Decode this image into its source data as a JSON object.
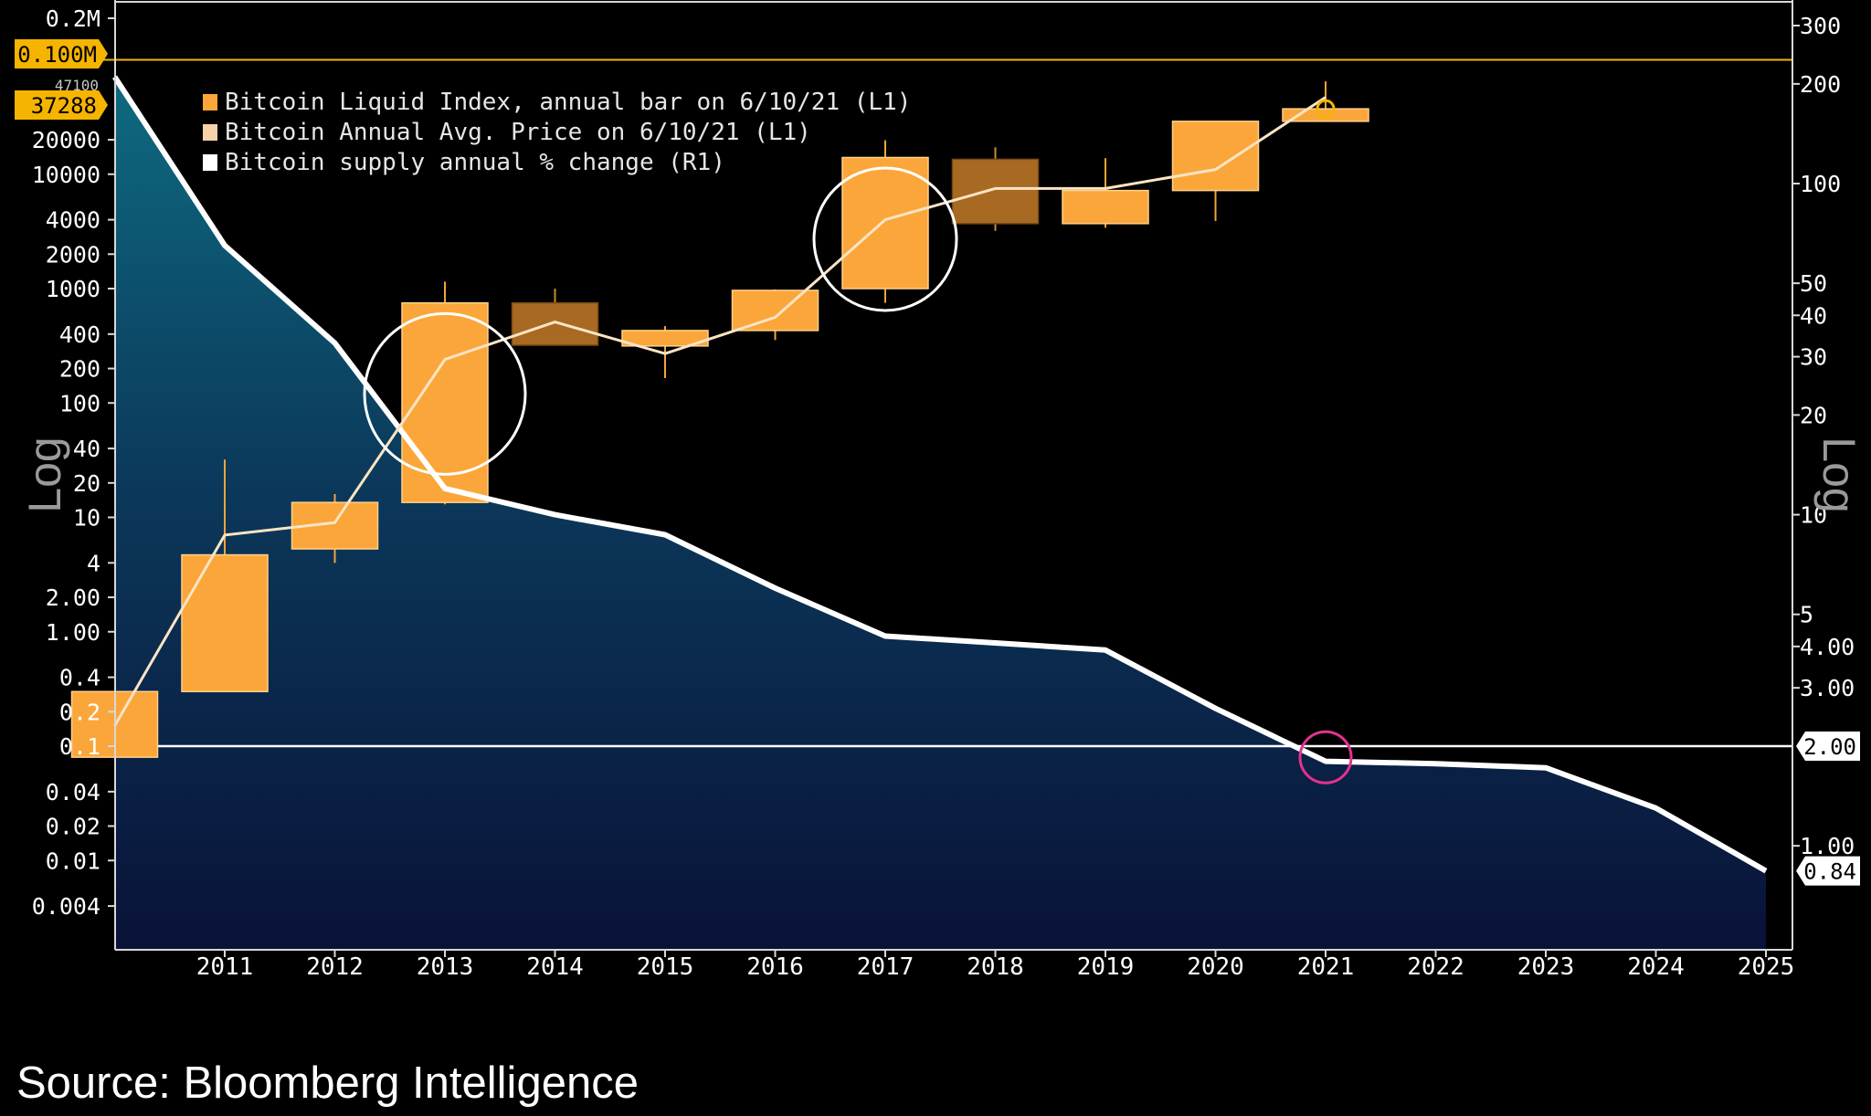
{
  "source": "Source: Bloomberg Intelligence",
  "colors": {
    "background": "#000000",
    "area_top": "#0d5f72",
    "area_bottom": "#0a1238",
    "bar_up": "#fba63a",
    "bar_down": "#a86a22",
    "line_white": "#ffffff",
    "highlight_yellow": "#f5b400",
    "highlight_magenta": "#e3328f"
  },
  "chart_data": {
    "type": "candlestick_line_area",
    "title": "",
    "xlabel": "",
    "ylabel_left": "Log",
    "ylabel_right": "Log",
    "x_ticks": [
      "2011",
      "2012",
      "2013",
      "2014",
      "2015",
      "2016",
      "2017",
      "2018",
      "2019",
      "2020",
      "2021",
      "2022",
      "2023",
      "2024",
      "2025"
    ],
    "left_axis": {
      "scale": "log",
      "ticks": [
        "0.2M",
        "20000",
        "10000",
        "4000",
        "2000",
        "1000",
        "400",
        "200",
        "100",
        "40",
        "20",
        "10",
        "4",
        "2.00",
        "1.00",
        "0.4",
        "0.2",
        "0.1",
        "0.04",
        "0.02",
        "0.01",
        "0.004"
      ],
      "highlight_labels": [
        "0.100M",
        "37288"
      ],
      "obscured_label": "47100"
    },
    "right_axis": {
      "scale": "log",
      "ticks": [
        "300",
        "200",
        "100",
        "50",
        "40",
        "30",
        "20",
        "10",
        "5",
        "4.00",
        "3.00",
        "1.00"
      ],
      "highlight_labels": [
        "2.00",
        "0.84"
      ]
    },
    "legend": [
      "Bitcoin Liquid Index, annual bar on 6/10/21 (L1)",
      "Bitcoin Annual Avg. Price on 6/10/21 (L1)",
      "Bitcoin supply annual % change  (R1)"
    ],
    "series": [
      {
        "name": "Bitcoin Liquid Index, annual bar on 6/10/21 (L1)",
        "type": "candlestick",
        "points": [
          {
            "year": 2010,
            "open": 0.08,
            "close": 0.3,
            "high": 0.3,
            "low": 0.08
          },
          {
            "year": 2011,
            "open": 0.3,
            "close": 4.7,
            "high": 32,
            "low": 0.3
          },
          {
            "year": 2012,
            "open": 5.3,
            "close": 13.5,
            "high": 16,
            "low": 4
          },
          {
            "year": 2013,
            "open": 13.5,
            "close": 750,
            "high": 1150,
            "low": 13
          },
          {
            "year": 2014,
            "open": 750,
            "close": 320,
            "high": 1000,
            "low": 320
          },
          {
            "year": 2015,
            "open": 315,
            "close": 430,
            "high": 470,
            "low": 165
          },
          {
            "year": 2016,
            "open": 430,
            "close": 965,
            "high": 985,
            "low": 355
          },
          {
            "year": 2017,
            "open": 1000,
            "close": 14000,
            "high": 19800,
            "low": 750
          },
          {
            "year": 2018,
            "open": 13500,
            "close": 3700,
            "high": 17200,
            "low": 3200
          },
          {
            "year": 2019,
            "open": 3700,
            "close": 7200,
            "high": 13800,
            "low": 3400
          },
          {
            "year": 2020,
            "open": 7200,
            "close": 29000,
            "high": 29000,
            "low": 3900
          },
          {
            "year": 2021,
            "open": 29000,
            "close": 37288,
            "high": 64800,
            "low": 29000
          }
        ]
      },
      {
        "name": "Bitcoin Annual Avg. Price on 6/10/21 (L1)",
        "type": "line",
        "points": [
          {
            "year": 2010,
            "value": 0.15
          },
          {
            "year": 2011,
            "value": 7
          },
          {
            "year": 2012,
            "value": 9
          },
          {
            "year": 2013,
            "value": 240
          },
          {
            "year": 2014,
            "value": 510
          },
          {
            "year": 2015,
            "value": 270
          },
          {
            "year": 2016,
            "value": 560
          },
          {
            "year": 2017,
            "value": 4000
          },
          {
            "year": 2018,
            "value": 7500
          },
          {
            "year": 2019,
            "value": 7500
          },
          {
            "year": 2020,
            "value": 11000
          },
          {
            "year": 2021,
            "value": 47100
          }
        ]
      },
      {
        "name": "Bitcoin supply annual % change  (R1)",
        "type": "area",
        "points": [
          {
            "year": 2010,
            "value": 210
          },
          {
            "year": 2011,
            "value": 65
          },
          {
            "year": 2012,
            "value": 33
          },
          {
            "year": 2013,
            "value": 12
          },
          {
            "year": 2014,
            "value": 10
          },
          {
            "year": 2015,
            "value": 8.7
          },
          {
            "year": 2016,
            "value": 6
          },
          {
            "year": 2017,
            "value": 4.3
          },
          {
            "year": 2018,
            "value": 4.1
          },
          {
            "year": 2019,
            "value": 3.9
          },
          {
            "year": 2020,
            "value": 2.6
          },
          {
            "year": 2021,
            "value": 1.8
          },
          {
            "year": 2022,
            "value": 1.77
          },
          {
            "year": 2023,
            "value": 1.72
          },
          {
            "year": 2024,
            "value": 1.3
          },
          {
            "year": 2025,
            "value": 0.84
          }
        ]
      }
    ],
    "reference_lines": [
      {
        "axis": "left",
        "label": "0.100M",
        "value": 100000,
        "color": "#f5b400"
      },
      {
        "axis": "right",
        "label": "2.00",
        "value": 2.0,
        "color": "#ffffff"
      }
    ],
    "highlight_circles": [
      {
        "year": 2013,
        "axis": "left",
        "value": 120,
        "color": "#ffffff"
      },
      {
        "year": 2017,
        "axis": "left",
        "value": 2700,
        "color": "#ffffff"
      },
      {
        "year": 2021,
        "axis": "right",
        "value": 1.85,
        "color": "#e3328f"
      },
      {
        "year": 2021,
        "axis": "left",
        "value": 37288,
        "color": "#f5b400"
      }
    ]
  }
}
